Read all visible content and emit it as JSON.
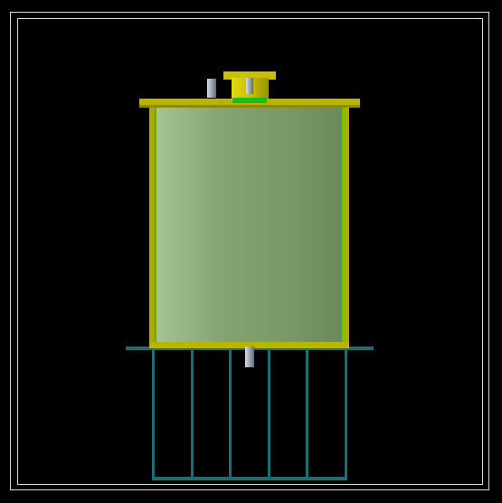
{
  "viewport": {
    "background": "#000000",
    "frame_color": "#d8d8d8"
  },
  "colors": {
    "tank_body_light": "#9fbc8e",
    "tank_body_mid": "#7d9c6c",
    "tank_body_dark": "#6e8c5c",
    "tank_rim": "#b9b400",
    "tank_rim_dark": "#8f8a00",
    "tank_edge_green": "#7ec000",
    "lid": "#c9c100",
    "nozzle_green": "#19c01a",
    "pipe_steel": "#9aa6b4",
    "stand": "#1a6f74"
  },
  "icons": {
    "tank": "cylindrical-tank-icon",
    "stand": "support-frame-icon",
    "inlet_pipe": "pipe-icon",
    "nozzle": "nozzle-icon",
    "outlet_pipe": "pipe-icon"
  },
  "model": {
    "stand_legs": 6
  }
}
